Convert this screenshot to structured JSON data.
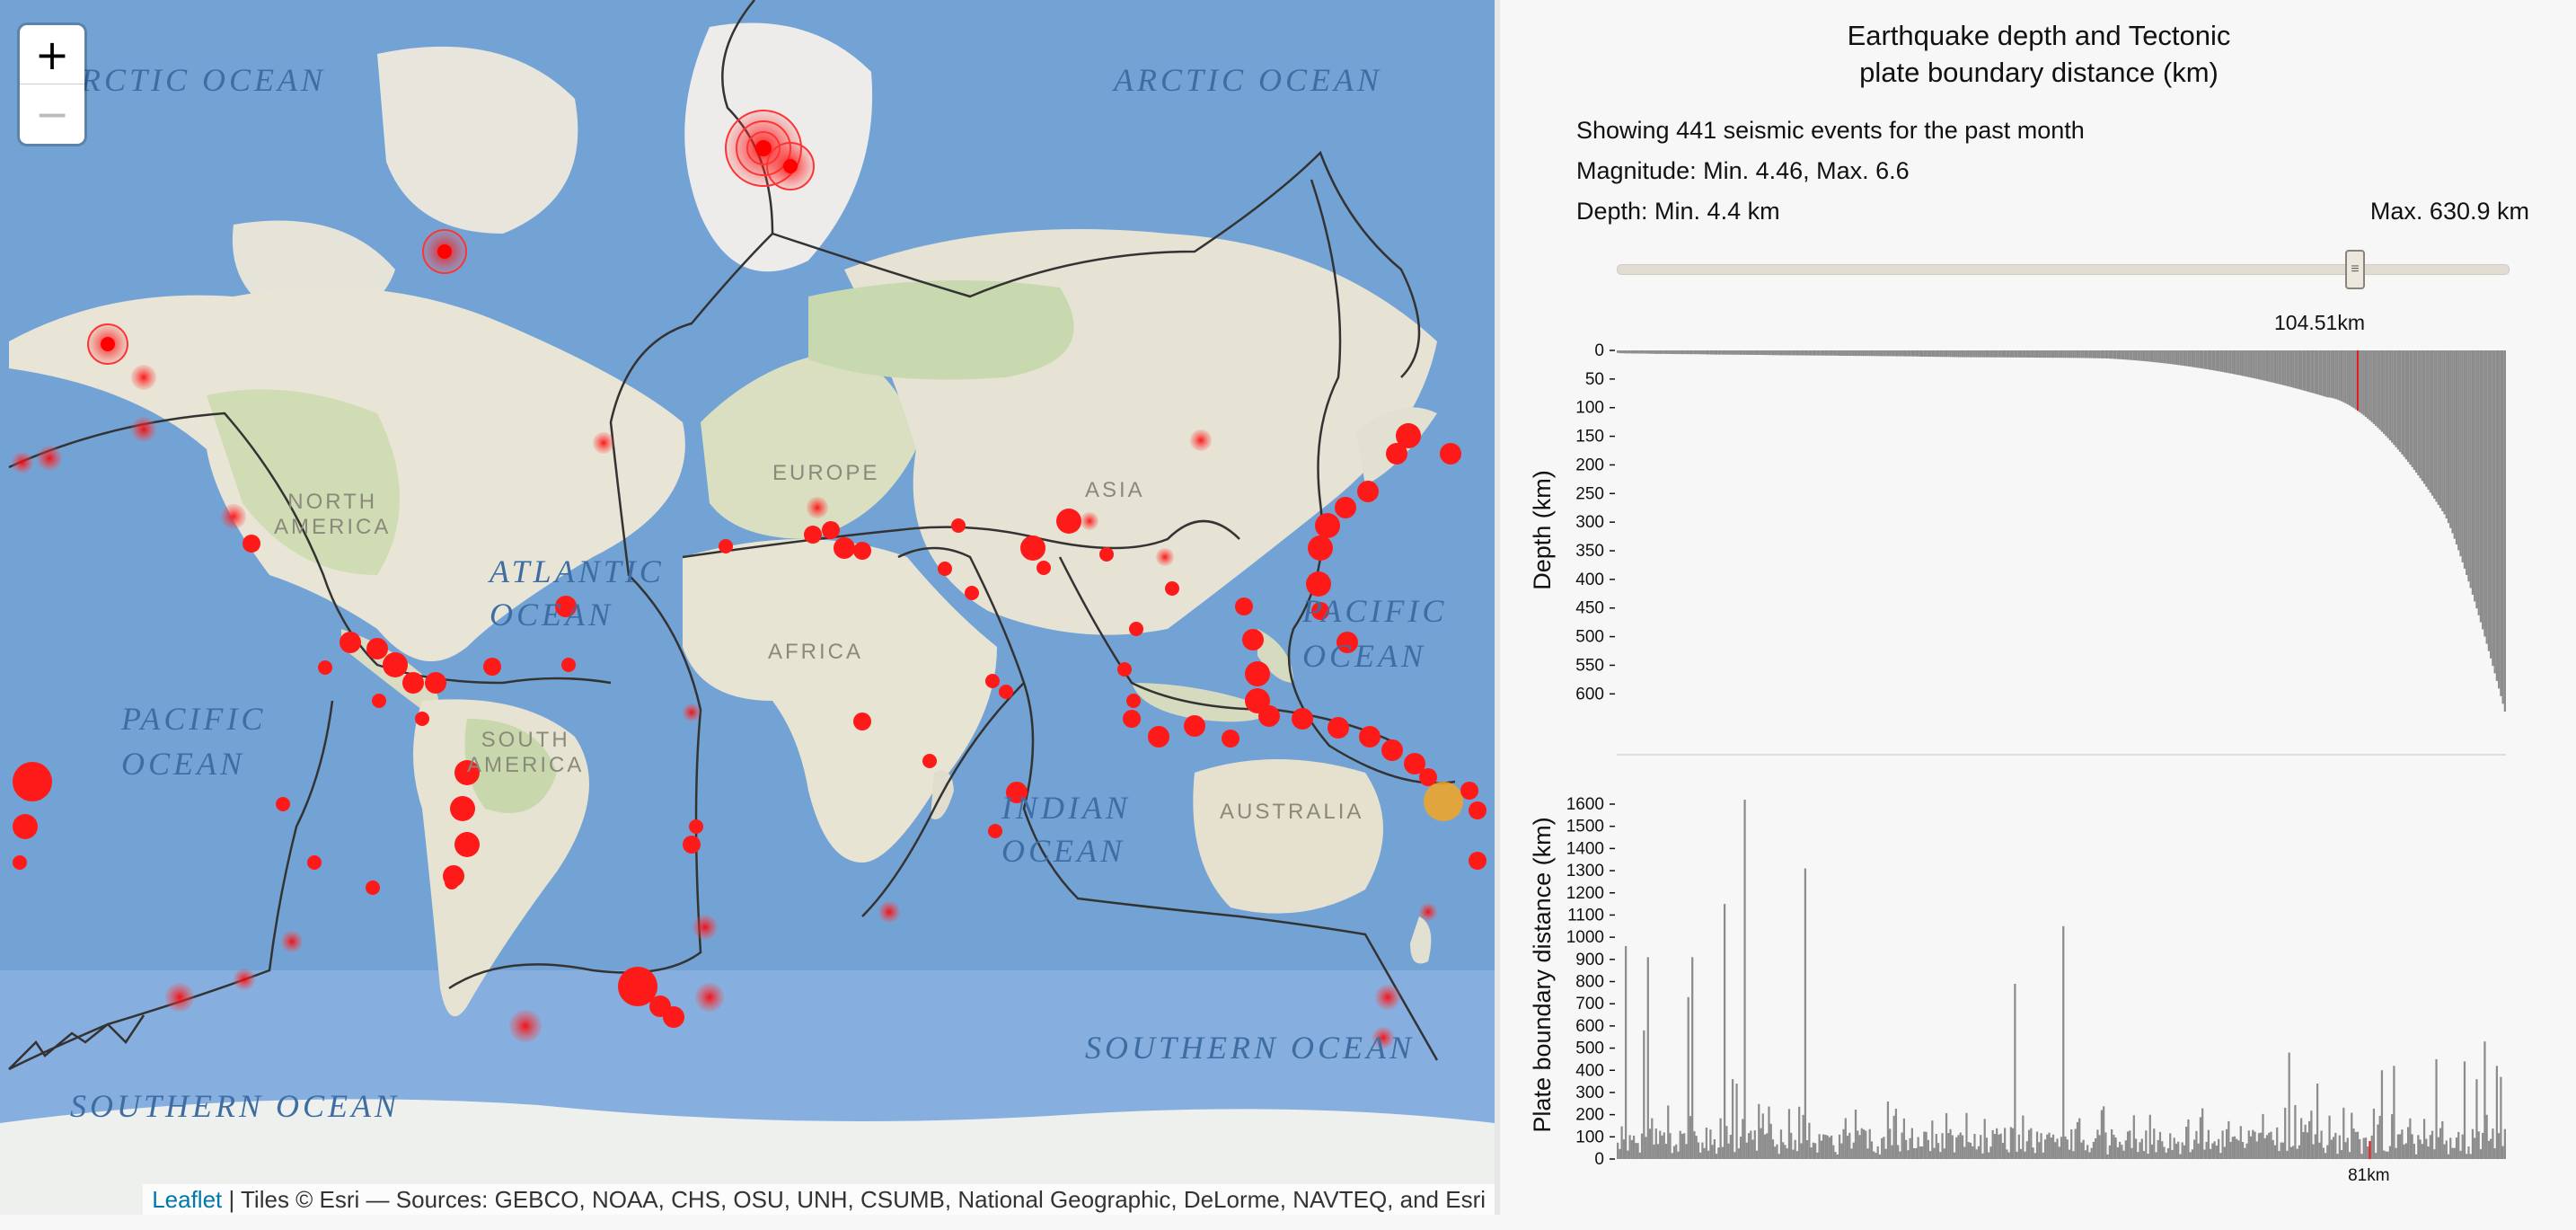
{
  "map": {
    "zoom_in": "+",
    "zoom_out": "−",
    "ocean_labels": [
      "RCTIC OCEAN",
      "ARCTIC OCEAN",
      "ATLANTIC\nOCEAN",
      "PACIFIC\nOCEAN",
      "PACIFIC\nOCEAN",
      "INDIAN\nOCEAN",
      "SOUTHERN OCEAN",
      "SOUTHERN OCEAN"
    ],
    "land_labels": [
      "NORTH\nAMERICA",
      "EUROPE",
      "ASIA",
      "AFRICA",
      "SOUTH\nAMERICA",
      "AUSTRALIA"
    ],
    "attribution_link": "Leaflet",
    "attribution_text": " | Tiles © Esri — Sources: GEBCO, NOAA, CHS, OSU, UNH, CSUMB, National Geographic, DeLorme, NAVTEQ, and Esri",
    "colors": {
      "ocean": "#6f9fd2",
      "land": "#e9e6dc",
      "marker": "#ff1a1a",
      "highlight": "#f4a623",
      "boundary": "#333333"
    }
  },
  "panel": {
    "title_line1": "Earthquake depth and Tectonic",
    "title_line2": "plate boundary distance (km)",
    "events_text": "Showing 441 seismic events for the past month",
    "magnitude_text": "Magnitude: Min. 4.46,  Max. 6.6",
    "depth_min_text": "Depth: Min. 4.4 km",
    "depth_max_text": "Max. 630.9 km",
    "slider_value_label": "104.51km",
    "slider_fraction": 0.84
  },
  "chart_data": [
    {
      "type": "bar",
      "ylabel": "Depth (km)",
      "ylim": [
        0,
        630.9
      ],
      "yticks": [
        0,
        50,
        100,
        150,
        200,
        250,
        300,
        350,
        400,
        450,
        500,
        550,
        600
      ],
      "n_events": 441,
      "sorted": "ascending",
      "min": 4.4,
      "max": 630.9,
      "highlight_value": 104.51,
      "highlight_color": "#e02020",
      "bar_color": "#8c8c8c"
    },
    {
      "type": "bar",
      "ylabel": "Plate boundary distance (km)",
      "ylim": [
        0,
        1700
      ],
      "yticks": [
        0,
        100,
        200,
        300,
        400,
        500,
        600,
        700,
        800,
        900,
        1000,
        1100,
        1200,
        1300,
        1400,
        1500,
        1600
      ],
      "n_events": 441,
      "highlight_label": "81km",
      "highlight_value": 81,
      "highlight_color": "#e02020",
      "bar_color": "#8c8c8c"
    }
  ]
}
